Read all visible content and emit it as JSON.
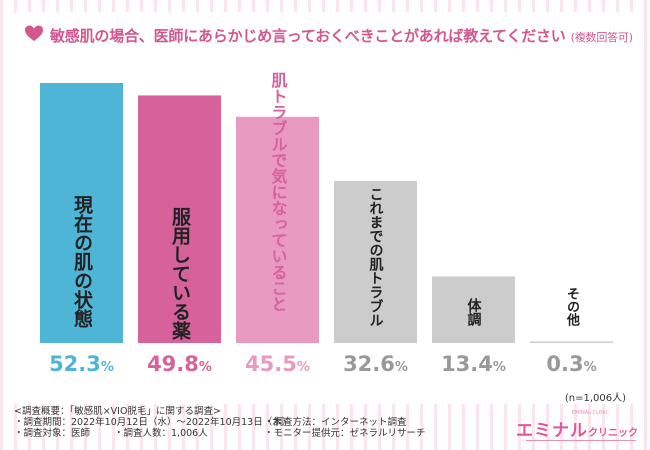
{
  "title": "敏感肌の場合、医師にあらかじめ言っておくべきことがあれば教えてください",
  "title_note": "(複数回答可)",
  "colors": {
    "accent": "#d2578f",
    "bar_blue": "#4fb5d6",
    "bar_magenta": "#d6619b",
    "bar_pink": "#e89ac0",
    "bar_gray": "#cccccc"
  },
  "chart_data": {
    "type": "bar",
    "categories": [
      "現在の肌の状態",
      "服用している薬",
      "肌トラブルで気になっていること",
      "これまでの肌トラブル",
      "体調",
      "その他"
    ],
    "values": [
      52.3,
      49.8,
      45.5,
      32.6,
      13.4,
      0.3
    ],
    "value_labels": [
      "52.3",
      "49.8",
      "45.5",
      "32.6",
      "13.4",
      "0.3"
    ],
    "unit": "%",
    "ylim": [
      0,
      52.3
    ],
    "grid": false,
    "legend": "none"
  },
  "n_note": "(n=1,006人)",
  "survey_notes": {
    "heading": "<調査概要：「敏感肌×VIO脱毛」に関する調査>",
    "period": "・調査期間：2022年10月12日（水）〜2022年10月13日（木）",
    "target": "・調査対象：医師",
    "count": "・調査人数：1,006人",
    "method": "・調査方法：インターネット調査",
    "provider": "・モニター提供元：ゼネラルリサーチ"
  },
  "logo": {
    "main": "エミナル",
    "sub": "クリニック",
    "tiny": "EMINAL CLINIC"
  }
}
